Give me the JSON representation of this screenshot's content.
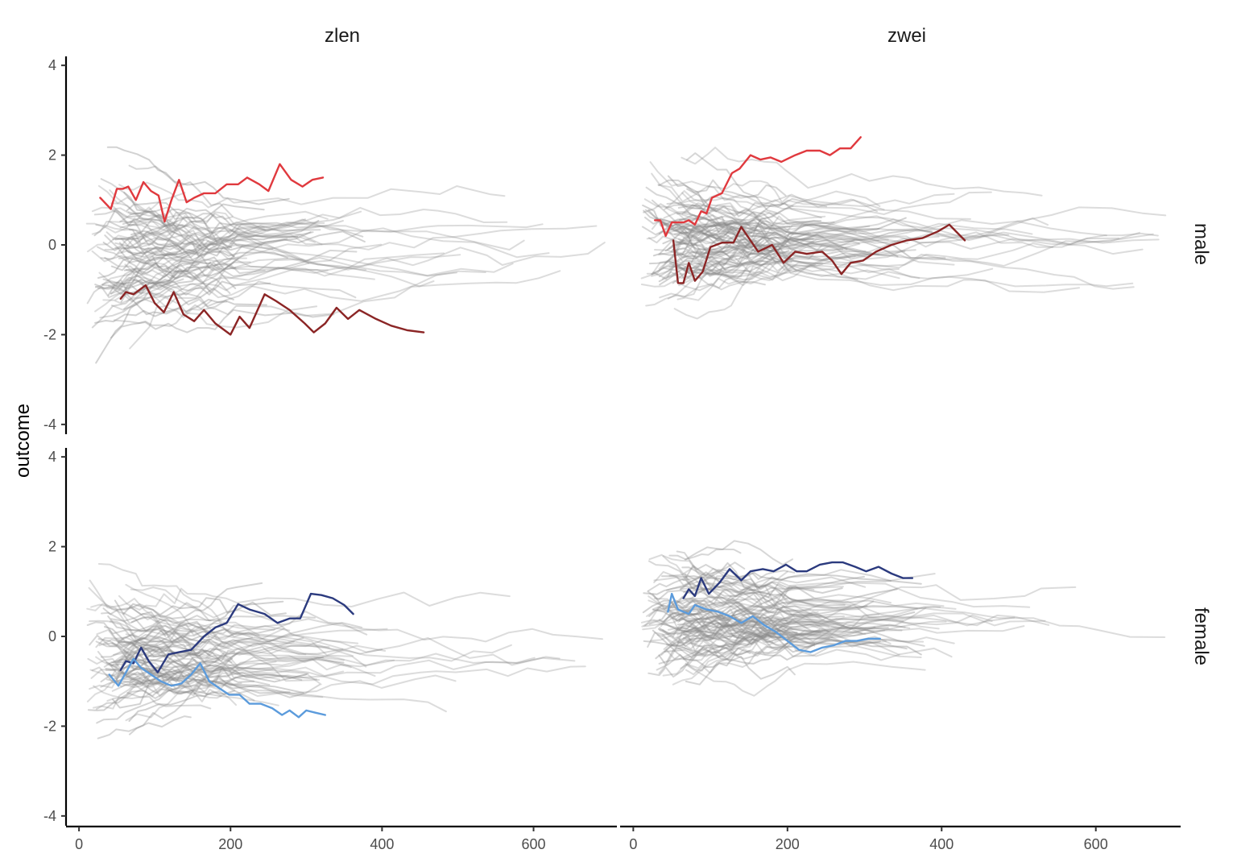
{
  "chart_data": {
    "type": "line",
    "ylabel": "outcome",
    "xlabel": "",
    "title": "",
    "columns": [
      "zlen",
      "zwei"
    ],
    "rows": [
      "male",
      "female"
    ],
    "xlim": [
      -15,
      710
    ],
    "ylim": [
      -4.2,
      4.2
    ],
    "x_ticks": [
      0,
      200,
      400,
      600
    ],
    "x_tick_labels": [
      "0",
      "200",
      "400",
      "600"
    ],
    "y_ticks": [
      -4,
      -2,
      0,
      2,
      4
    ],
    "y_tick_labels": [
      "-4",
      "-2",
      "0",
      "2",
      "4"
    ],
    "grid": false,
    "colors": {
      "background_lines": "#8a8a8a",
      "male_high": "#e0393e",
      "male_low": "#8b2525",
      "female_high": "#2b3a7e",
      "female_low": "#5b9bdc"
    },
    "panels": [
      {
        "column": "zlen",
        "row": "male",
        "background_trajectories": 80,
        "background_seed": 11,
        "background_center": -0.3,
        "background_spread": 1.15,
        "highlighted": [
          {
            "color_key": "male_high",
            "points": [
              [
                28,
                1.05
              ],
              [
                42,
                0.8
              ],
              [
                50,
                1.25
              ],
              [
                58,
                1.25
              ],
              [
                65,
                1.3
              ],
              [
                75,
                1.0
              ],
              [
                85,
                1.4
              ],
              [
                95,
                1.2
              ],
              [
                105,
                1.1
              ],
              [
                113,
                0.52
              ],
              [
                122,
                1.0
              ],
              [
                132,
                1.45
              ],
              [
                142,
                0.95
              ],
              [
                152,
                1.05
              ],
              [
                165,
                1.15
              ],
              [
                180,
                1.15
              ],
              [
                195,
                1.35
              ],
              [
                210,
                1.35
              ],
              [
                222,
                1.5
              ],
              [
                238,
                1.35
              ],
              [
                250,
                1.2
              ],
              [
                265,
                1.8
              ],
              [
                280,
                1.45
              ],
              [
                295,
                1.3
              ],
              [
                308,
                1.45
              ],
              [
                322,
                1.5
              ]
            ]
          },
          {
            "color_key": "male_low",
            "points": [
              [
                55,
                -1.2
              ],
              [
                62,
                -1.05
              ],
              [
                72,
                -1.1
              ],
              [
                88,
                -0.9
              ],
              [
                100,
                -1.3
              ],
              [
                112,
                -1.5
              ],
              [
                125,
                -1.05
              ],
              [
                138,
                -1.55
              ],
              [
                152,
                -1.7
              ],
              [
                165,
                -1.45
              ],
              [
                180,
                -1.75
              ],
              [
                200,
                -2.0
              ],
              [
                212,
                -1.6
              ],
              [
                225,
                -1.85
              ],
              [
                245,
                -1.1
              ],
              [
                260,
                -1.25
              ],
              [
                278,
                -1.45
              ],
              [
                298,
                -1.75
              ],
              [
                310,
                -1.95
              ],
              [
                325,
                -1.75
              ],
              [
                340,
                -1.4
              ],
              [
                355,
                -1.65
              ],
              [
                370,
                -1.45
              ],
              [
                392,
                -1.65
              ],
              [
                412,
                -1.8
              ],
              [
                433,
                -1.9
              ],
              [
                455,
                -1.95
              ]
            ]
          }
        ]
      },
      {
        "column": "zwei",
        "row": "male",
        "background_trajectories": 90,
        "background_seed": 23,
        "background_center": 0.15,
        "background_spread": 0.95,
        "highlighted": [
          {
            "color_key": "male_high",
            "points": [
              [
                28,
                0.55
              ],
              [
                35,
                0.55
              ],
              [
                42,
                0.2
              ],
              [
                50,
                0.5
              ],
              [
                58,
                0.5
              ],
              [
                65,
                0.5
              ],
              [
                72,
                0.55
              ],
              [
                80,
                0.45
              ],
              [
                88,
                0.75
              ],
              [
                95,
                0.7
              ],
              [
                102,
                1.05
              ],
              [
                115,
                1.15
              ],
              [
                128,
                1.6
              ],
              [
                138,
                1.7
              ],
              [
                152,
                2.0
              ],
              [
                165,
                1.9
              ],
              [
                178,
                1.95
              ],
              [
                192,
                1.85
              ],
              [
                210,
                2.0
              ],
              [
                225,
                2.1
              ],
              [
                242,
                2.1
              ],
              [
                255,
                2.0
              ],
              [
                268,
                2.15
              ],
              [
                282,
                2.15
              ],
              [
                295,
                2.4
              ]
            ]
          },
          {
            "color_key": "male_low",
            "points": [
              [
                52,
                0.1
              ],
              [
                58,
                -0.85
              ],
              [
                65,
                -0.85
              ],
              [
                72,
                -0.4
              ],
              [
                80,
                -0.8
              ],
              [
                90,
                -0.6
              ],
              [
                100,
                -0.05
              ],
              [
                115,
                0.05
              ],
              [
                130,
                0.05
              ],
              [
                140,
                0.4
              ],
              [
                150,
                0.15
              ],
              [
                162,
                -0.15
              ],
              [
                180,
                0.0
              ],
              [
                195,
                -0.4
              ],
              [
                210,
                -0.15
              ],
              [
                225,
                -0.2
              ],
              [
                245,
                -0.15
              ],
              [
                258,
                -0.35
              ],
              [
                270,
                -0.65
              ],
              [
                282,
                -0.4
              ],
              [
                298,
                -0.35
              ],
              [
                315,
                -0.15
              ],
              [
                335,
                0.0
              ],
              [
                355,
                0.1
              ],
              [
                375,
                0.15
              ],
              [
                395,
                0.3
              ],
              [
                410,
                0.45
              ],
              [
                430,
                0.1
              ]
            ]
          }
        ]
      },
      {
        "column": "zlen",
        "row": "female",
        "background_trajectories": 85,
        "background_seed": 37,
        "background_center": -0.45,
        "background_spread": 1.0,
        "highlighted": [
          {
            "color_key": "female_high",
            "points": [
              [
                55,
                -0.75
              ],
              [
                62,
                -0.55
              ],
              [
                72,
                -0.6
              ],
              [
                82,
                -0.25
              ],
              [
                92,
                -0.55
              ],
              [
                104,
                -0.8
              ],
              [
                118,
                -0.4
              ],
              [
                132,
                -0.35
              ],
              [
                148,
                -0.3
              ],
              [
                165,
                -0.0
              ],
              [
                180,
                0.2
              ],
              [
                195,
                0.3
              ],
              [
                210,
                0.72
              ],
              [
                225,
                0.6
              ],
              [
                245,
                0.5
              ],
              [
                262,
                0.3
              ],
              [
                278,
                0.4
              ],
              [
                292,
                0.4
              ],
              [
                306,
                0.95
              ],
              [
                320,
                0.92
              ],
              [
                335,
                0.85
              ],
              [
                350,
                0.7
              ],
              [
                362,
                0.5
              ]
            ]
          },
          {
            "color_key": "female_low",
            "points": [
              [
                40,
                -0.85
              ],
              [
                52,
                -1.1
              ],
              [
                62,
                -0.8
              ],
              [
                72,
                -0.5
              ],
              [
                82,
                -0.7
              ],
              [
                95,
                -0.85
              ],
              [
                108,
                -1.0
              ],
              [
                122,
                -1.1
              ],
              [
                135,
                -1.05
              ],
              [
                148,
                -0.85
              ],
              [
                160,
                -0.6
              ],
              [
                172,
                -1.0
              ],
              [
                185,
                -1.15
              ],
              [
                198,
                -1.3
              ],
              [
                212,
                -1.3
              ],
              [
                225,
                -1.5
              ],
              [
                240,
                -1.5
              ],
              [
                255,
                -1.6
              ],
              [
                268,
                -1.75
              ],
              [
                278,
                -1.65
              ],
              [
                290,
                -1.8
              ],
              [
                300,
                -1.65
              ],
              [
                312,
                -1.7
              ],
              [
                325,
                -1.75
              ]
            ]
          }
        ]
      },
      {
        "column": "zwei",
        "row": "female",
        "background_trajectories": 95,
        "background_seed": 51,
        "background_center": 0.35,
        "background_spread": 0.85,
        "highlighted": [
          {
            "color_key": "female_high",
            "points": [
              [
                65,
                0.85
              ],
              [
                72,
                1.05
              ],
              [
                80,
                0.9
              ],
              [
                88,
                1.3
              ],
              [
                98,
                0.95
              ],
              [
                112,
                1.2
              ],
              [
                125,
                1.5
              ],
              [
                140,
                1.25
              ],
              [
                152,
                1.45
              ],
              [
                168,
                1.5
              ],
              [
                182,
                1.45
              ],
              [
                198,
                1.6
              ],
              [
                212,
                1.45
              ],
              [
                225,
                1.45
              ],
              [
                242,
                1.6
              ],
              [
                258,
                1.65
              ],
              [
                272,
                1.65
              ],
              [
                288,
                1.55
              ],
              [
                302,
                1.45
              ],
              [
                318,
                1.55
              ],
              [
                335,
                1.4
              ],
              [
                350,
                1.3
              ],
              [
                362,
                1.3
              ]
            ]
          },
          {
            "color_key": "female_low",
            "points": [
              [
                45,
                0.55
              ],
              [
                50,
                0.95
              ],
              [
                58,
                0.6
              ],
              [
                65,
                0.55
              ],
              [
                72,
                0.5
              ],
              [
                80,
                0.7
              ],
              [
                95,
                0.6
              ],
              [
                110,
                0.55
              ],
              [
                125,
                0.45
              ],
              [
                140,
                0.3
              ],
              [
                155,
                0.45
              ],
              [
                170,
                0.25
              ],
              [
                185,
                0.1
              ],
              [
                200,
                -0.1
              ],
              [
                215,
                -0.3
              ],
              [
                230,
                -0.35
              ],
              [
                245,
                -0.25
              ],
              [
                260,
                -0.2
              ],
              [
                275,
                -0.1
              ],
              [
                290,
                -0.1
              ],
              [
                305,
                -0.05
              ],
              [
                320,
                -0.05
              ]
            ]
          }
        ]
      }
    ]
  }
}
